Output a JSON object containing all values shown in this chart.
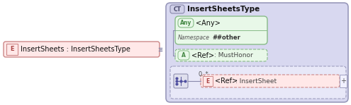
{
  "bg_color": "#ffffff",
  "main_bg": "#d8d8f0",
  "main_border": "#9999bb",
  "ct_label": "CT",
  "ct_title": "InsertSheetsType",
  "ct_label_bg": "#d0d0e8",
  "ct_label_border": "#8888aa",
  "any_box_bg": "#e8f8e8",
  "any_box_border": "#88bb88",
  "any_label": "Any",
  "any_title": "<Any>",
  "namespace_label": "Namespace",
  "namespace_value": "##other",
  "attr_box_bg": "#e8f8e8",
  "attr_box_border": "#88bb88",
  "attr_label": "A",
  "attr_title": "<Ref>",
  "attr_value": ": MustHonor",
  "elem_box_bg": "#ffe8e8",
  "elem_box_border": "#cc8888",
  "elem_label": "E",
  "elem_title": "<Ref>",
  "elem_value": ": InsertSheet",
  "elem_mult": "0..*",
  "main_elem_label": "E",
  "main_elem_title": "InsertSheets : InsertSheetsType",
  "main_elem_bg": "#ffe8e8",
  "main_elem_border": "#cc8888",
  "connector_color": "#8888aa",
  "dashed_border": "#a0a0c0",
  "seq_bg": "#e8e8f8",
  "plus_bg": "#f0f0ff",
  "sym_bg": "#e0e0ee",
  "sym_border": "#9090b0"
}
